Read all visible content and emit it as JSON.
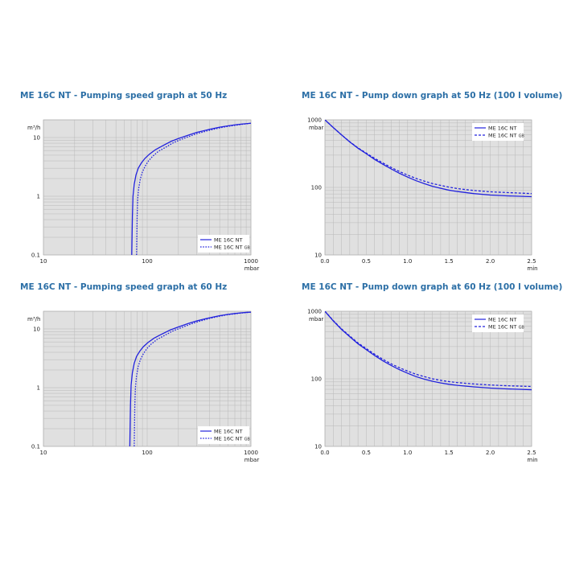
{
  "colors": {
    "plot_bg": "#e0e0e0",
    "grid": "#b8b8b8",
    "title": "#2c6fa6",
    "curve": "#2222dd"
  },
  "chart_data": [
    {
      "type": "line",
      "title": "ME 16C NT - Pumping speed graph at 50 Hz",
      "x_scale": "log",
      "y_scale": "log",
      "xlim": [
        10,
        1000
      ],
      "ylim": [
        0.1,
        20
      ],
      "x_ticks": [
        "10",
        "100",
        "1000"
      ],
      "y_ticks": [
        "10",
        "1",
        "0.1"
      ],
      "xlabel": "mbar",
      "ylabel": "m³/h",
      "legend_position": "bottom-right",
      "grid": true,
      "series": [
        {
          "name": "ME 16C NT",
          "dash": "solid",
          "x": [
            71,
            72,
            73,
            75,
            78,
            82,
            88,
            95,
            105,
            120,
            140,
            170,
            200,
            250,
            300,
            400,
            500,
            600,
            700,
            800,
            900,
            1000
          ],
          "y": [
            0.1,
            0.45,
            1.0,
            1.6,
            2.3,
            3.0,
            3.7,
            4.4,
            5.2,
            6.2,
            7.2,
            8.6,
            9.6,
            11.0,
            12.2,
            13.8,
            15.0,
            15.8,
            16.4,
            16.9,
            17.2,
            17.5
          ]
        },
        {
          "name": "ME 16C NT GB",
          "dash": "dotted",
          "x": [
            79,
            80,
            81,
            83,
            86,
            90,
            96,
            103,
            113,
            128,
            150,
            180,
            210,
            260,
            310,
            400,
            500,
            600,
            700,
            800,
            900,
            1000
          ],
          "y": [
            0.1,
            0.45,
            0.9,
            1.4,
            2.0,
            2.6,
            3.3,
            4.0,
            4.8,
            5.8,
            6.8,
            8.2,
            9.2,
            10.6,
            11.8,
            13.3,
            14.6,
            15.5,
            16.1,
            16.7,
            17.1,
            17.5
          ]
        }
      ]
    },
    {
      "type": "line",
      "title": "ME 16C NT - Pump down graph at 50 Hz (100 l volume)",
      "x_scale": "linear",
      "y_scale": "log",
      "xlim": [
        0,
        2.5
      ],
      "ylim": [
        10,
        1000
      ],
      "x_ticks": [
        "0.0",
        "0.5",
        "1.0",
        "1.5",
        "2.0",
        "2.5"
      ],
      "y_ticks": [
        "1000",
        "100",
        "10"
      ],
      "xlabel": "min",
      "ylabel": "mbar",
      "legend_position": "top-right",
      "grid": true,
      "series": [
        {
          "name": "ME 16C NT",
          "dash": "solid",
          "x": [
            0,
            0.1,
            0.2,
            0.3,
            0.4,
            0.5,
            0.6,
            0.7,
            0.8,
            0.9,
            1.0,
            1.1,
            1.2,
            1.3,
            1.4,
            1.5,
            1.6,
            1.8,
            2.0,
            2.2,
            2.5
          ],
          "y": [
            1000,
            770,
            600,
            470,
            380,
            315,
            260,
            220,
            188,
            162,
            142,
            126,
            114,
            104,
            97,
            91,
            87,
            81,
            77,
            75,
            73
          ]
        },
        {
          "name": "ME 16C NT GB",
          "dash": "dashed",
          "x": [
            0,
            0.1,
            0.2,
            0.3,
            0.4,
            0.5,
            0.6,
            0.7,
            0.8,
            0.9,
            1.0,
            1.1,
            1.2,
            1.3,
            1.4,
            1.5,
            1.6,
            1.8,
            2.0,
            2.2,
            2.5
          ],
          "y": [
            1000,
            770,
            600,
            475,
            385,
            322,
            270,
            230,
            198,
            172,
            152,
            136,
            124,
            114,
            107,
            101,
            96,
            90,
            86,
            84,
            81
          ]
        }
      ]
    },
    {
      "type": "line",
      "title": "ME 16C NT - Pumping speed graph at 60 Hz",
      "x_scale": "log",
      "y_scale": "log",
      "xlim": [
        10,
        1000
      ],
      "ylim": [
        0.1,
        20
      ],
      "x_ticks": [
        "10",
        "100",
        "1000"
      ],
      "y_ticks": [
        "10",
        "1",
        "0.1"
      ],
      "xlabel": "mbar",
      "ylabel": "m³/h",
      "legend_position": "bottom-right",
      "grid": true,
      "series": [
        {
          "name": "ME 16C NT",
          "dash": "solid",
          "x": [
            68,
            69,
            70,
            72,
            75,
            79,
            85,
            92,
            102,
            117,
            137,
            167,
            200,
            250,
            300,
            400,
            500,
            600,
            700,
            800,
            900,
            1000
          ],
          "y": [
            0.1,
            0.5,
            1.1,
            1.8,
            2.6,
            3.4,
            4.2,
            5.0,
            5.9,
            7.0,
            8.1,
            9.6,
            10.8,
            12.4,
            13.7,
            15.5,
            16.8,
            17.7,
            18.3,
            18.8,
            19.1,
            19.3
          ]
        },
        {
          "name": "ME 16C NT GB",
          "dash": "dotted",
          "x": [
            75,
            76,
            77,
            79,
            82,
            86,
            92,
            99,
            109,
            124,
            146,
            176,
            210,
            260,
            310,
            400,
            500,
            600,
            700,
            800,
            900,
            1000
          ],
          "y": [
            0.1,
            0.5,
            1.0,
            1.6,
            2.3,
            3.0,
            3.8,
            4.6,
            5.5,
            6.6,
            7.7,
            9.2,
            10.4,
            12.0,
            13.3,
            15.1,
            16.5,
            17.5,
            18.1,
            18.6,
            19.0,
            19.3
          ]
        }
      ]
    },
    {
      "type": "line",
      "title": "ME 16C NT - Pump down graph at 60 Hz (100 l volume)",
      "x_scale": "linear",
      "y_scale": "log",
      "xlim": [
        0,
        2.5
      ],
      "ylim": [
        10,
        1000
      ],
      "x_ticks": [
        "0.0",
        "0.5",
        "1.0",
        "1.5",
        "2.0",
        "2.5"
      ],
      "y_ticks": [
        "1000",
        "100",
        "10"
      ],
      "xlabel": "min",
      "ylabel": "mbar",
      "legend_position": "top-right",
      "grid": true,
      "series": [
        {
          "name": "ME 16C NT",
          "dash": "solid",
          "x": [
            0,
            0.1,
            0.2,
            0.3,
            0.4,
            0.5,
            0.6,
            0.7,
            0.8,
            0.9,
            1.0,
            1.1,
            1.2,
            1.3,
            1.4,
            1.5,
            1.6,
            1.8,
            2.0,
            2.2,
            2.5
          ],
          "y": [
            1000,
            720,
            540,
            420,
            330,
            270,
            222,
            185,
            158,
            137,
            121,
            108,
            99,
            92,
            87,
            83,
            80,
            76,
            73,
            71,
            69
          ]
        },
        {
          "name": "ME 16C NT GB",
          "dash": "dashed",
          "x": [
            0,
            0.1,
            0.2,
            0.3,
            0.4,
            0.5,
            0.6,
            0.7,
            0.8,
            0.9,
            1.0,
            1.1,
            1.2,
            1.3,
            1.4,
            1.5,
            1.6,
            1.8,
            2.0,
            2.2,
            2.5
          ],
          "y": [
            1000,
            730,
            550,
            430,
            340,
            280,
            232,
            195,
            167,
            146,
            130,
            117,
            108,
            100,
            95,
            91,
            88,
            84,
            81,
            79,
            77
          ]
        }
      ]
    }
  ]
}
